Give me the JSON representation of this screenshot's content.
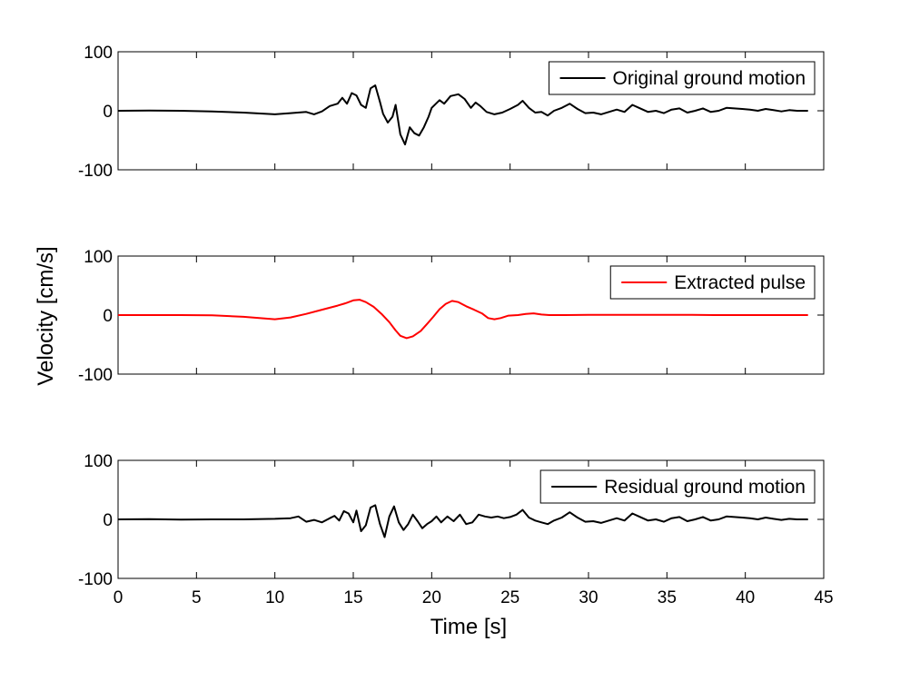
{
  "chart_data": {
    "type": "line",
    "ylabel": "Velocity [cm/s]",
    "xlabel": "Time [s]",
    "xlim": [
      0,
      45
    ],
    "xticks": [
      0,
      5,
      10,
      15,
      20,
      25,
      30,
      35,
      40,
      45
    ],
    "ylim": [
      -100,
      100
    ],
    "yticks": [
      -100,
      0,
      100
    ],
    "grid": false,
    "legend_position": "top-right",
    "panels": [
      {
        "series": [
          {
            "name": "Original ground motion",
            "color": "#000000",
            "points": [
              [
                0,
                0
              ],
              [
                2,
                0.5
              ],
              [
                4,
                0
              ],
              [
                6,
                -1
              ],
              [
                8,
                -3
              ],
              [
                10,
                -6
              ],
              [
                11,
                -4
              ],
              [
                12,
                -2
              ],
              [
                12.5,
                -6
              ],
              [
                13,
                -1
              ],
              [
                13.5,
                8
              ],
              [
                14,
                12
              ],
              [
                14.3,
                22
              ],
              [
                14.6,
                12
              ],
              [
                14.9,
                30
              ],
              [
                15.2,
                26
              ],
              [
                15.5,
                10
              ],
              [
                15.8,
                5
              ],
              [
                16.1,
                38
              ],
              [
                16.4,
                43
              ],
              [
                16.7,
                15
              ],
              [
                16.9,
                -5
              ],
              [
                17.2,
                -20
              ],
              [
                17.5,
                -10
              ],
              [
                17.7,
                10
              ],
              [
                18,
                -40
              ],
              [
                18.3,
                -57
              ],
              [
                18.6,
                -28
              ],
              [
                18.9,
                -38
              ],
              [
                19.2,
                -42
              ],
              [
                19.5,
                -28
              ],
              [
                19.8,
                -10
              ],
              [
                20,
                5
              ],
              [
                20.5,
                18
              ],
              [
                20.8,
                12
              ],
              [
                21.2,
                25
              ],
              [
                21.7,
                28
              ],
              [
                22.1,
                20
              ],
              [
                22.5,
                5
              ],
              [
                22.8,
                14
              ],
              [
                23.1,
                8
              ],
              [
                23.5,
                -2
              ],
              [
                24,
                -6
              ],
              [
                24.5,
                -3
              ],
              [
                25,
                3
              ],
              [
                25.5,
                10
              ],
              [
                25.8,
                17
              ],
              [
                26.2,
                5
              ],
              [
                26.6,
                -3
              ],
              [
                27,
                -2
              ],
              [
                27.4,
                -8
              ],
              [
                27.8,
                0
              ],
              [
                28.3,
                5
              ],
              [
                28.8,
                12
              ],
              [
                29.3,
                3
              ],
              [
                29.8,
                -4
              ],
              [
                30.3,
                -3
              ],
              [
                30.8,
                -6
              ],
              [
                31.3,
                -2
              ],
              [
                31.8,
                2
              ],
              [
                32.3,
                -2
              ],
              [
                32.8,
                10
              ],
              [
                33.3,
                4
              ],
              [
                33.8,
                -2
              ],
              [
                34.3,
                0
              ],
              [
                34.8,
                -4
              ],
              [
                35.3,
                2
              ],
              [
                35.8,
                4
              ],
              [
                36.3,
                -3
              ],
              [
                36.8,
                0
              ],
              [
                37.3,
                4
              ],
              [
                37.8,
                -2
              ],
              [
                38.3,
                0
              ],
              [
                38.8,
                5
              ],
              [
                39.3,
                4
              ],
              [
                39.8,
                3
              ],
              [
                40.3,
                2
              ],
              [
                40.8,
                0
              ],
              [
                41.3,
                3
              ],
              [
                41.8,
                1
              ],
              [
                42.3,
                -1
              ],
              [
                42.8,
                1
              ],
              [
                43.3,
                0
              ],
              [
                44,
                0
              ]
            ]
          }
        ]
      },
      {
        "series": [
          {
            "name": "Extracted pulse",
            "color": "#ff0000",
            "points": [
              [
                0,
                0
              ],
              [
                2,
                0
              ],
              [
                4,
                0
              ],
              [
                6,
                -0.5
              ],
              [
                8,
                -3
              ],
              [
                9,
                -5
              ],
              [
                10,
                -7
              ],
              [
                11,
                -4
              ],
              [
                12,
                2
              ],
              [
                13,
                9
              ],
              [
                14,
                16
              ],
              [
                14.5,
                20
              ],
              [
                15,
                25
              ],
              [
                15.4,
                26
              ],
              [
                15.8,
                22
              ],
              [
                16.3,
                14
              ],
              [
                16.8,
                2
              ],
              [
                17.3,
                -12
              ],
              [
                17.7,
                -26
              ],
              [
                18,
                -35
              ],
              [
                18.4,
                -39
              ],
              [
                18.8,
                -36
              ],
              [
                19.3,
                -27
              ],
              [
                19.7,
                -15
              ],
              [
                20.1,
                -3
              ],
              [
                20.5,
                10
              ],
              [
                20.9,
                19
              ],
              [
                21.3,
                24
              ],
              [
                21.7,
                22
              ],
              [
                22.2,
                15
              ],
              [
                22.7,
                9
              ],
              [
                23.2,
                3
              ],
              [
                23.6,
                -5
              ],
              [
                24,
                -7
              ],
              [
                24.4,
                -5
              ],
              [
                24.9,
                -1
              ],
              [
                25.5,
                0
              ],
              [
                26,
                2
              ],
              [
                26.5,
                3
              ],
              [
                27,
                1
              ],
              [
                27.5,
                0
              ],
              [
                28.5,
                0
              ],
              [
                30,
                0.5
              ],
              [
                32,
                0.5
              ],
              [
                34,
                0.5
              ],
              [
                36,
                0.5
              ],
              [
                38,
                0
              ],
              [
                40,
                0
              ],
              [
                42,
                0
              ],
              [
                44,
                0
              ]
            ]
          }
        ]
      },
      {
        "series": [
          {
            "name": "Residual ground motion",
            "color": "#000000",
            "points": [
              [
                0,
                0
              ],
              [
                2,
                0.5
              ],
              [
                4,
                -0.5
              ],
              [
                6,
                0
              ],
              [
                8,
                0
              ],
              [
                10,
                1
              ],
              [
                11,
                2
              ],
              [
                11.5,
                5
              ],
              [
                12,
                -4
              ],
              [
                12.5,
                -1
              ],
              [
                13,
                -5
              ],
              [
                13.5,
                2
              ],
              [
                13.8,
                6
              ],
              [
                14.1,
                -2
              ],
              [
                14.4,
                14
              ],
              [
                14.7,
                10
              ],
              [
                15,
                -5
              ],
              [
                15.2,
                15
              ],
              [
                15.5,
                -20
              ],
              [
                15.8,
                -10
              ],
              [
                16.1,
                20
              ],
              [
                16.4,
                24
              ],
              [
                16.7,
                -8
              ],
              [
                17,
                -30
              ],
              [
                17.3,
                5
              ],
              [
                17.6,
                22
              ],
              [
                17.9,
                -5
              ],
              [
                18.2,
                -18
              ],
              [
                18.5,
                -8
              ],
              [
                18.8,
                8
              ],
              [
                19.1,
                -3
              ],
              [
                19.4,
                -15
              ],
              [
                19.7,
                -8
              ],
              [
                20,
                -3
              ],
              [
                20.3,
                5
              ],
              [
                20.6,
                -5
              ],
              [
                21,
                5
              ],
              [
                21.4,
                -3
              ],
              [
                21.8,
                8
              ],
              [
                22.2,
                -8
              ],
              [
                22.6,
                -5
              ],
              [
                23,
                8
              ],
              [
                23.4,
                5
              ],
              [
                23.8,
                3
              ],
              [
                24.2,
                5
              ],
              [
                24.6,
                2
              ],
              [
                25,
                4
              ],
              [
                25.4,
                8
              ],
              [
                25.8,
                16
              ],
              [
                26.2,
                3
              ],
              [
                26.6,
                -2
              ],
              [
                27,
                -5
              ],
              [
                27.4,
                -8
              ],
              [
                27.8,
                -2
              ],
              [
                28.3,
                3
              ],
              [
                28.8,
                12
              ],
              [
                29.3,
                3
              ],
              [
                29.8,
                -4
              ],
              [
                30.3,
                -3
              ],
              [
                30.8,
                -6
              ],
              [
                31.3,
                -2
              ],
              [
                31.8,
                2
              ],
              [
                32.3,
                -2
              ],
              [
                32.8,
                10
              ],
              [
                33.3,
                4
              ],
              [
                33.8,
                -2
              ],
              [
                34.3,
                0
              ],
              [
                34.8,
                -4
              ],
              [
                35.3,
                2
              ],
              [
                35.8,
                4
              ],
              [
                36.3,
                -3
              ],
              [
                36.8,
                0
              ],
              [
                37.3,
                4
              ],
              [
                37.8,
                -2
              ],
              [
                38.3,
                0
              ],
              [
                38.8,
                5
              ],
              [
                39.3,
                4
              ],
              [
                39.8,
                3
              ],
              [
                40.3,
                2
              ],
              [
                40.8,
                0
              ],
              [
                41.3,
                3
              ],
              [
                41.8,
                1
              ],
              [
                42.3,
                -1
              ],
              [
                42.8,
                1
              ],
              [
                43.3,
                0
              ],
              [
                44,
                0
              ]
            ]
          }
        ]
      }
    ]
  }
}
